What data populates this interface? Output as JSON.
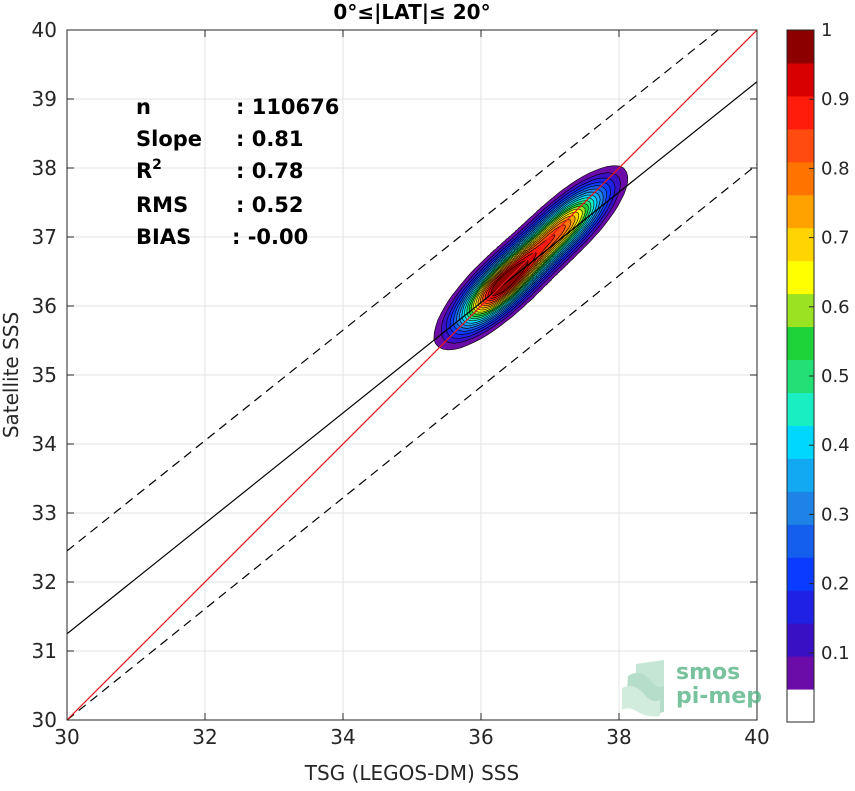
{
  "chart_data": {
    "type": "contour",
    "title": "0°≤|LAT|≤ 20°",
    "xlabel": "TSG (LEGOS-DM) SSS",
    "ylabel": "Satellite SSS",
    "xlim": [
      30,
      40
    ],
    "ylim": [
      30,
      40
    ],
    "xticks": [
      30,
      32,
      34,
      36,
      38,
      40
    ],
    "yticks": [
      30,
      31,
      32,
      33,
      34,
      35,
      36,
      37,
      38,
      39,
      40
    ],
    "grid": true,
    "stats": [
      {
        "label": "n",
        "value": ": 110676"
      },
      {
        "label": "Slope",
        "value": ": 0.81"
      },
      {
        "label": "R",
        "sup": "2",
        "value": ": 0.78"
      },
      {
        "label": "RMS",
        "value": ": 0.52"
      },
      {
        "label": "BIAS",
        "value": ": -0.00"
      }
    ],
    "lines": {
      "one_to_one": {
        "x": [
          30,
          40
        ],
        "y": [
          30,
          40
        ],
        "color": "#e8191c"
      },
      "fit": {
        "x": [
          30,
          40
        ],
        "y": [
          31.25,
          39.25
        ],
        "color": "#000000"
      },
      "upper_bound": {
        "x": [
          30,
          40
        ],
        "y": [
          32.45,
          40.45
        ],
        "color": "#000000",
        "style": "dashed"
      },
      "lower_bound": {
        "x": [
          30,
          40
        ],
        "y": [
          30.0,
          38.05
        ],
        "color": "#000000",
        "style": "dashed"
      }
    },
    "density_peaks": [
      {
        "x": 36.3,
        "y": 36.3,
        "value": 1.0
      },
      {
        "x": 37.2,
        "y": 37.15,
        "value": 0.75
      }
    ],
    "colorbar": {
      "range": [
        0,
        1
      ],
      "ticks": [
        "0.1",
        "0.2",
        "0.3",
        "0.4",
        "0.5",
        "0.6",
        "0.7",
        "0.8",
        "0.9",
        "1"
      ],
      "tick_values": [
        0.1,
        0.2,
        0.3,
        0.4,
        0.5,
        0.6,
        0.7,
        0.8,
        0.9,
        1.0
      ],
      "colors": [
        "#ffffff",
        "#6b0ca8",
        "#3a10c4",
        "#1f22e4",
        "#0a3cff",
        "#155fef",
        "#1d83e6",
        "#12a8f2",
        "#00d7ff",
        "#18eec2",
        "#22e075",
        "#1ed33a",
        "#9be322",
        "#ffff00",
        "#ffd400",
        "#ffa200",
        "#ff7400",
        "#ff4b0f",
        "#ff1c0a",
        "#d80000",
        "#8c0000"
      ]
    }
  },
  "watermark": {
    "line1": "smos",
    "line2": "pi-mep"
  }
}
